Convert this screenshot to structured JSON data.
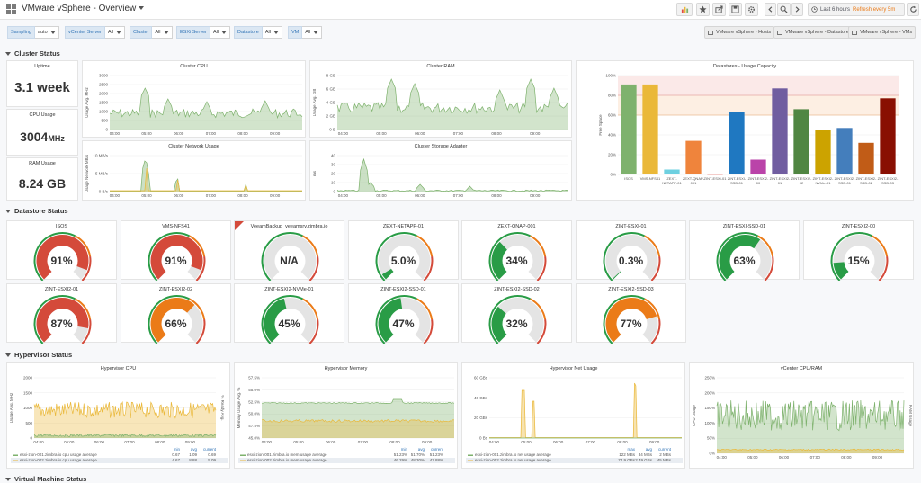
{
  "header": {
    "title": "VMware vSphere - Overview",
    "time_range": "Last 6 hours",
    "refresh": "Refresh every 5m"
  },
  "variables": [
    {
      "label": "Sampling",
      "value": "auto"
    },
    {
      "label": "vCenter Server",
      "value": "All"
    },
    {
      "label": "Cluster",
      "value": "All"
    },
    {
      "label": "ESXi Server",
      "value": "All"
    },
    {
      "label": "Datastore",
      "value": "All"
    },
    {
      "label": "VM",
      "value": "All"
    }
  ],
  "links": [
    "VMware vSphere - Hosts",
    "VMware vSphere - Datastore",
    "VMware vSphere - VMs"
  ],
  "rows": {
    "cluster": "Cluster Status",
    "datastore": "Datastore Status",
    "hypervisor": "Hypervisor Status",
    "vm": "Virtual Machine Status"
  },
  "cluster": {
    "uptime": {
      "title": "Uptime",
      "value": "3.1 week"
    },
    "cpu_usage": {
      "title": "CPU Usage",
      "value": "3004",
      "unit": "MHz"
    },
    "ram_usage": {
      "title": "RAM Usage",
      "value": "8.24 GB"
    },
    "cpu_chart": {
      "title": "Cluster CPU",
      "ylabel": "Usage Avg. MHz",
      "yticks": [
        "3000",
        "2500",
        "2000",
        "1500",
        "1000",
        "500",
        "0"
      ],
      "xticks": [
        "04:00",
        "05:00",
        "06:00",
        "07:00",
        "08:00",
        "09:00"
      ]
    },
    "ram_chart": {
      "title": "Cluster RAM",
      "ylabel": "Usage Avg. GB",
      "yticks": [
        "8 GB",
        "6 GB",
        "4 GB",
        "2 GB",
        "0 B"
      ],
      "xticks": [
        "04:00",
        "05:00",
        "06:00",
        "07:00",
        "08:00",
        "09:00"
      ]
    },
    "net_chart": {
      "title": "Cluster Network Usage",
      "ylabel": "Usage Network MB/s",
      "yticks": [
        "10 MB/s",
        "5 MB/s",
        "0 B/s"
      ],
      "xticks": [
        "04:00",
        "05:00",
        "06:00",
        "07:00",
        "08:00",
        "09:00"
      ]
    },
    "storage_chart": {
      "title": "Cluster Storage Adapter",
      "ylabel": "ms",
      "yticks": [
        "40",
        "30",
        "20",
        "10",
        "0"
      ],
      "xticks": [
        "04:00",
        "05:00",
        "06:00",
        "07:00",
        "08:00",
        "09:00"
      ]
    }
  },
  "datastore_usage": {
    "title": "Datastores - Usage Capacity",
    "ylabel": "Free Space",
    "yticks": [
      "100%",
      "80%",
      "60%",
      "40%",
      "20%",
      "0%"
    ],
    "colors": {
      "warn": "#eb7b18",
      "crit": "#e24d42"
    }
  },
  "gauges": [
    {
      "name": "ISOS",
      "value": "91%",
      "pct": 91,
      "color": "#d44a3a"
    },
    {
      "name": "VMS-NFS41",
      "value": "91%",
      "pct": 91,
      "color": "#d44a3a"
    },
    {
      "name": "VeeamBackup_veeamsrv.zimbra.io",
      "value": "N/A",
      "pct": 0,
      "color": "#299c46"
    },
    {
      "name": "ZEXT-NETAPP-01",
      "value": "5.0%",
      "pct": 5,
      "color": "#299c46"
    },
    {
      "name": "ZEXT-QNAP-001",
      "value": "34%",
      "pct": 34,
      "color": "#299c46"
    },
    {
      "name": "ZINT-ESXI-01",
      "value": "0.3%",
      "pct": 0.3,
      "color": "#299c46"
    },
    {
      "name": "ZINT-ESXI-SSD-01",
      "value": "63%",
      "pct": 63,
      "color": "#299c46"
    },
    {
      "name": "ZINT-ESXI2-00",
      "value": "15%",
      "pct": 15,
      "color": "#299c46"
    },
    {
      "name": "ZINT-ESXI2-01",
      "value": "87%",
      "pct": 87,
      "color": "#d44a3a"
    },
    {
      "name": "ZINT-ESXI2-02",
      "value": "66%",
      "pct": 66,
      "color": "#eb7b18"
    },
    {
      "name": "ZINT-ESXI2-NVMe-01",
      "value": "45%",
      "pct": 45,
      "color": "#299c46"
    },
    {
      "name": "ZINT-ESXI2-SSD-01",
      "value": "47%",
      "pct": 47,
      "color": "#299c46"
    },
    {
      "name": "ZINT-ESXI2-SSD-02",
      "value": "32%",
      "pct": 32,
      "color": "#299c46"
    },
    {
      "name": "ZINT-ESXI2-SSD-03",
      "value": "77%",
      "pct": 77,
      "color": "#eb7b18"
    }
  ],
  "hypervisor": {
    "cpu": {
      "title": "Hypervisor CPU",
      "ylabel": "Usage Avg. MHz",
      "y2label": "% Ready Avg.",
      "yticks": [
        "2000",
        "1500",
        "1000",
        "500",
        "0"
      ],
      "xticks": [
        "04:00",
        "05:00",
        "06:00",
        "07:00",
        "08:00",
        "09:00"
      ],
      "legend_hdr": [
        "min",
        "avg",
        "current"
      ],
      "legend": [
        {
          "name": "esxi-zion-001.zimbra.io cpu usage average",
          "min": "0.67",
          "avg": "1.09",
          "current": "0.69",
          "color": "#7eb26d"
        },
        {
          "name": "esxi-zion-002.zimbra.io cpu usage average",
          "min": "4.67",
          "avg": "8.88",
          "current": "5.09",
          "color": "#eab839"
        }
      ]
    },
    "mem": {
      "title": "Hypervisor Memory",
      "ylabel": "Memory Usage Avg. %",
      "yticks": [
        "57.5%",
        "55.0%",
        "52.5%",
        "50.0%",
        "47.5%",
        "45.0%"
      ],
      "xticks": [
        "04:00",
        "05:00",
        "06:00",
        "07:00",
        "08:00",
        "09:00"
      ],
      "legend_hdr": [
        "min",
        "avg",
        "current"
      ],
      "legend": [
        {
          "name": "esxi-zion-001.zimbra.io mem usage average",
          "min": "51.23%",
          "avg": "51.70%",
          "current": "51.23%",
          "color": "#7eb26d"
        },
        {
          "name": "esxi-zion-002.zimbra.io mem usage average",
          "min": "46.29%",
          "avg": "48.30%",
          "current": "47.88%",
          "color": "#eab839"
        }
      ]
    },
    "net": {
      "title": "Hypervisor Net Usage",
      "yticks": [
        "60 GBs",
        "40 GBs",
        "20 GBs",
        "0 Bs"
      ],
      "xticks": [
        "04:00",
        "05:00",
        "06:00",
        "07:00",
        "08:00",
        "09:00"
      ],
      "legend_hdr": [
        "max",
        "avg",
        "current"
      ],
      "legend": [
        {
          "name": "esxi-zion-001.zimbra.io net usage average",
          "min": "122 MBs",
          "avg": "34 MBs",
          "current": "2 MBs",
          "color": "#7eb26d"
        },
        {
          "name": "esxi-zion-002.zimbra.io net usage average",
          "min": "74.9 GBs",
          "avg": "2.49 GBs",
          "current": "45 MBs",
          "color": "#eab839"
        }
      ]
    },
    "vcenter": {
      "title": "vCenter CPU/RAM",
      "ylabel": "CPU Usage",
      "y2label": "RAM Usage",
      "yticks": [
        "250%",
        "200%",
        "150%",
        "100%",
        "50%",
        "0%"
      ],
      "xticks": [
        "04:00",
        "05:00",
        "06:00",
        "07:00",
        "08:00",
        "09:00"
      ]
    }
  },
  "chart_data": {
    "type": "bar",
    "title": "Datastores - Usage Capacity",
    "ylabel": "Free Space",
    "ylim": [
      0,
      100
    ],
    "categories": [
      "ISOS",
      "VMS-NFS41",
      "ZEXT-NETAPP-01",
      "ZEXT-QNAP-001",
      "ZINT-ESXI-01",
      "ZINT-ESXI-SSD-01",
      "ZINT-ESXI2-00",
      "ZINT-ESXI2-01",
      "ZINT-ESXI2-02",
      "ZINT-ESXI2-NVMe-01",
      "ZINT-ESXI2-SSD-01",
      "ZINT-ESXI2-SSD-02",
      "ZINT-ESXI2-SSD-03"
    ],
    "labels": [
      "ISOS",
      "VMS-NFS41",
      "ZEXT-\nNETAPP-01",
      "ZEXT-QNAP-\n001",
      "ZINT-ESXI-01",
      "ZINT-ESXI-\nSSD-01",
      "ZINT-ESXI2-\n00",
      "ZINT-ESXI2-\n01",
      "ZINT-ESXI2-\n02",
      "ZINT-ESXI2-\nNVMe-01",
      "ZINT-ESXI2-\nSSD-01",
      "ZINT-ESXI2-\nSSD-02",
      "ZINT-ESXI2-\nSSD-03"
    ],
    "values": [
      91,
      91,
      5,
      34,
      0.3,
      63,
      15,
      87,
      66,
      45,
      47,
      32,
      77
    ],
    "colors": [
      "#7eb26d",
      "#eab839",
      "#6ed0e0",
      "#ef843c",
      "#e24d42",
      "#1f78c1",
      "#ba43a9",
      "#705da0",
      "#508642",
      "#cca300",
      "#447ebc",
      "#c15c17",
      "#890f02"
    ],
    "thresholds": [
      60,
      80
    ]
  }
}
